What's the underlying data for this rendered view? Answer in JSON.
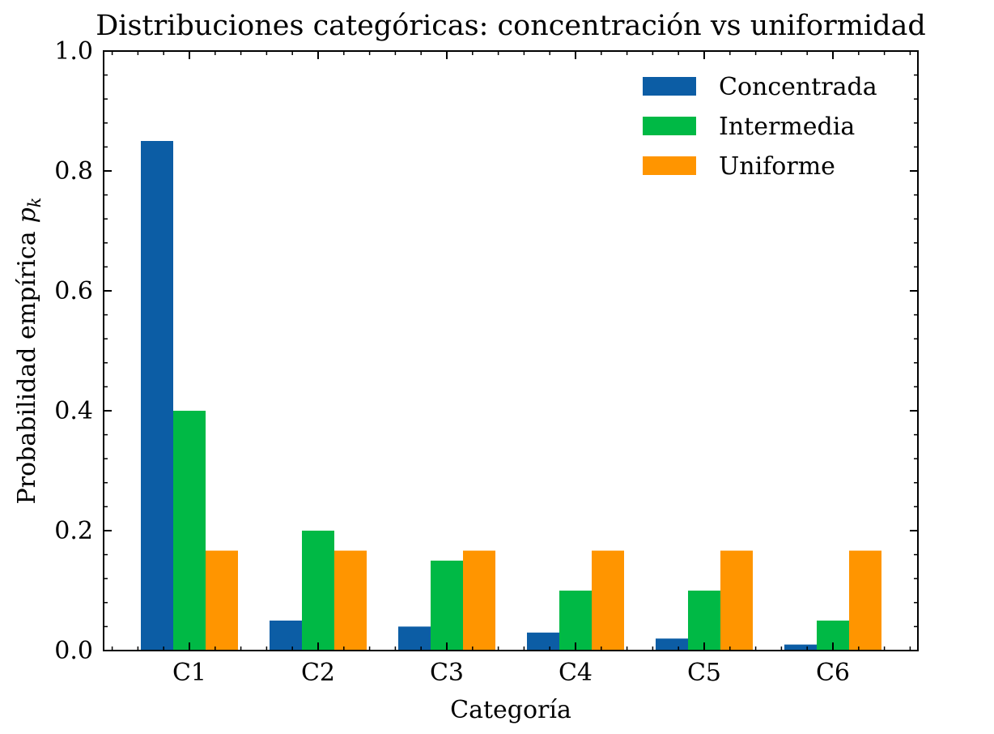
{
  "chart_data": {
    "type": "bar",
    "title": "Distribuciones categóricas: concentración vs uniformidad",
    "xlabel": "Categoría",
    "ylabel": "Probabilidad empírica",
    "ylabel_symbol": "p",
    "ylabel_subscript": "k",
    "categories": [
      "C1",
      "C2",
      "C3",
      "C4",
      "C5",
      "C6"
    ],
    "ylim": [
      0,
      1.0
    ],
    "yticks": [
      "0.0",
      "0.2",
      "0.4",
      "0.6",
      "0.8",
      "1.0"
    ],
    "grid": false,
    "legend_position": "top-right",
    "series": [
      {
        "name": "Concentrada",
        "color": "#0c5da5",
        "values": [
          0.85,
          0.05,
          0.04,
          0.03,
          0.02,
          0.01
        ]
      },
      {
        "name": "Intermedia",
        "color": "#00b945",
        "values": [
          0.4,
          0.2,
          0.15,
          0.1,
          0.1,
          0.05
        ]
      },
      {
        "name": "Uniforme",
        "color": "#ff9500",
        "values": [
          0.1667,
          0.1667,
          0.1667,
          0.1667,
          0.1667,
          0.1667
        ]
      }
    ]
  }
}
